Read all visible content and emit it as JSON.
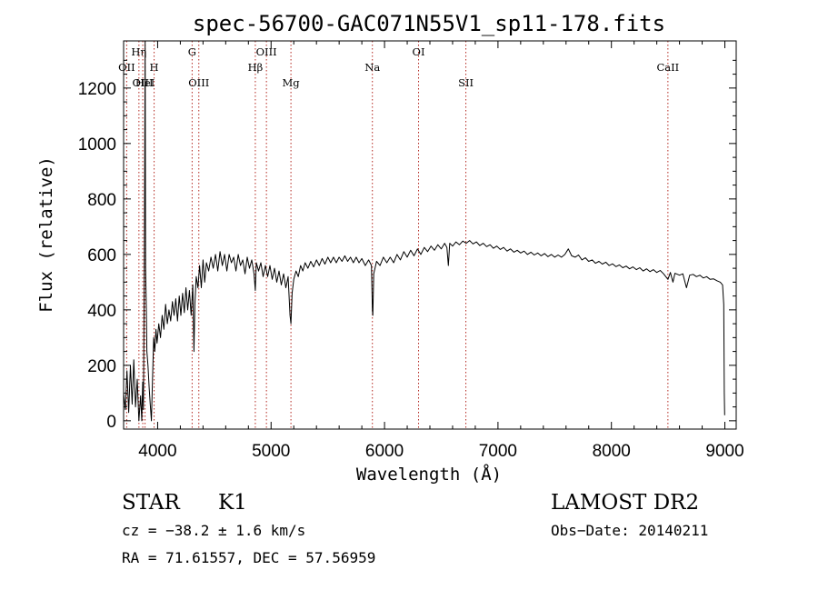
{
  "chart_data": {
    "type": "line",
    "title": "spec-56700-GAC071N55V1_sp11-178.fits",
    "xlabel": "Wavelength (Å)",
    "ylabel": "Flux (relative)",
    "xlim": [
      3700,
      9100
    ],
    "ylim": [
      -30,
      1370
    ],
    "x_ticks": [
      4000,
      5000,
      6000,
      7000,
      8000,
      9000
    ],
    "y_ticks": [
      0,
      200,
      400,
      600,
      800,
      1000,
      1200
    ],
    "grid": false,
    "series": [
      {
        "points": [
          [
            3700,
            100
          ],
          [
            3715,
            40
          ],
          [
            3730,
            180
          ],
          [
            3745,
            30
          ],
          [
            3760,
            200
          ],
          [
            3775,
            60
          ],
          [
            3790,
            220
          ],
          [
            3805,
            50
          ],
          [
            3820,
            150
          ],
          [
            3835,
            0
          ],
          [
            3850,
            90
          ],
          [
            3860,
            0
          ],
          [
            3868,
            140
          ],
          [
            3875,
            40
          ],
          [
            3882,
            500
          ],
          [
            3886,
            900
          ],
          [
            3890,
            1370
          ],
          [
            3894,
            550
          ],
          [
            3900,
            400
          ],
          [
            3905,
            250
          ],
          [
            3915,
            200
          ],
          [
            3925,
            120
          ],
          [
            3935,
            60
          ],
          [
            3945,
            0
          ],
          [
            3955,
            150
          ],
          [
            3965,
            300
          ],
          [
            3975,
            250
          ],
          [
            3985,
            330
          ],
          [
            3995,
            280
          ],
          [
            4010,
            350
          ],
          [
            4025,
            300
          ],
          [
            4040,
            380
          ],
          [
            4055,
            330
          ],
          [
            4070,
            420
          ],
          [
            4085,
            350
          ],
          [
            4100,
            400
          ],
          [
            4115,
            360
          ],
          [
            4130,
            430
          ],
          [
            4145,
            380
          ],
          [
            4160,
            440
          ],
          [
            4175,
            360
          ],
          [
            4190,
            450
          ],
          [
            4205,
            380
          ],
          [
            4220,
            460
          ],
          [
            4235,
            390
          ],
          [
            4250,
            480
          ],
          [
            4265,
            400
          ],
          [
            4280,
            470
          ],
          [
            4295,
            380
          ],
          [
            4310,
            490
          ],
          [
            4320,
            250
          ],
          [
            4328,
            420
          ],
          [
            4340,
            520
          ],
          [
            4355,
            480
          ],
          [
            4370,
            560
          ],
          [
            4385,
            480
          ],
          [
            4400,
            580
          ],
          [
            4415,
            500
          ],
          [
            4430,
            570
          ],
          [
            4450,
            540
          ],
          [
            4470,
            590
          ],
          [
            4490,
            550
          ],
          [
            4510,
            600
          ],
          [
            4530,
            540
          ],
          [
            4550,
            610
          ],
          [
            4570,
            560
          ],
          [
            4590,
            600
          ],
          [
            4610,
            540
          ],
          [
            4630,
            600
          ],
          [
            4650,
            570
          ],
          [
            4670,
            590
          ],
          [
            4690,
            540
          ],
          [
            4710,
            600
          ],
          [
            4730,
            560
          ],
          [
            4750,
            580
          ],
          [
            4770,
            530
          ],
          [
            4790,
            590
          ],
          [
            4810,
            550
          ],
          [
            4830,
            580
          ],
          [
            4850,
            530
          ],
          [
            4861,
            470
          ],
          [
            4870,
            570
          ],
          [
            4890,
            540
          ],
          [
            4910,
            570
          ],
          [
            4930,
            520
          ],
          [
            4950,
            560
          ],
          [
            4970,
            520
          ],
          [
            4990,
            560
          ],
          [
            5010,
            510
          ],
          [
            5030,
            550
          ],
          [
            5050,
            500
          ],
          [
            5070,
            540
          ],
          [
            5090,
            490
          ],
          [
            5110,
            530
          ],
          [
            5130,
            480
          ],
          [
            5150,
            520
          ],
          [
            5167,
            380
          ],
          [
            5175,
            350
          ],
          [
            5185,
            460
          ],
          [
            5200,
            510
          ],
          [
            5220,
            540
          ],
          [
            5240,
            520
          ],
          [
            5260,
            560
          ],
          [
            5280,
            540
          ],
          [
            5300,
            570
          ],
          [
            5325,
            550
          ],
          [
            5350,
            575
          ],
          [
            5375,
            555
          ],
          [
            5400,
            580
          ],
          [
            5425,
            560
          ],
          [
            5450,
            585
          ],
          [
            5475,
            565
          ],
          [
            5500,
            590
          ],
          [
            5525,
            570
          ],
          [
            5550,
            590
          ],
          [
            5575,
            570
          ],
          [
            5600,
            590
          ],
          [
            5625,
            575
          ],
          [
            5650,
            595
          ],
          [
            5675,
            575
          ],
          [
            5700,
            590
          ],
          [
            5725,
            570
          ],
          [
            5750,
            590
          ],
          [
            5775,
            570
          ],
          [
            5800,
            585
          ],
          [
            5830,
            560
          ],
          [
            5860,
            580
          ],
          [
            5885,
            560
          ],
          [
            5893,
            400
          ],
          [
            5897,
            380
          ],
          [
            5905,
            530
          ],
          [
            5930,
            575
          ],
          [
            5960,
            560
          ],
          [
            5990,
            590
          ],
          [
            6020,
            570
          ],
          [
            6050,
            590
          ],
          [
            6080,
            570
          ],
          [
            6110,
            600
          ],
          [
            6140,
            580
          ],
          [
            6170,
            610
          ],
          [
            6200,
            590
          ],
          [
            6230,
            615
          ],
          [
            6260,
            595
          ],
          [
            6290,
            620
          ],
          [
            6320,
            600
          ],
          [
            6350,
            625
          ],
          [
            6380,
            610
          ],
          [
            6410,
            630
          ],
          [
            6440,
            615
          ],
          [
            6470,
            635
          ],
          [
            6500,
            620
          ],
          [
            6530,
            640
          ],
          [
            6550,
            625
          ],
          [
            6563,
            560
          ],
          [
            6575,
            640
          ],
          [
            6600,
            630
          ],
          [
            6630,
            645
          ],
          [
            6660,
            635
          ],
          [
            6690,
            648
          ],
          [
            6720,
            640
          ],
          [
            6750,
            650
          ],
          [
            6780,
            638
          ],
          [
            6810,
            645
          ],
          [
            6840,
            632
          ],
          [
            6870,
            640
          ],
          [
            6900,
            628
          ],
          [
            6930,
            635
          ],
          [
            6960,
            622
          ],
          [
            6990,
            630
          ],
          [
            7020,
            618
          ],
          [
            7050,
            625
          ],
          [
            7080,
            612
          ],
          [
            7110,
            620
          ],
          [
            7140,
            608
          ],
          [
            7170,
            615
          ],
          [
            7200,
            605
          ],
          [
            7230,
            612
          ],
          [
            7260,
            600
          ],
          [
            7290,
            608
          ],
          [
            7320,
            598
          ],
          [
            7350,
            605
          ],
          [
            7380,
            595
          ],
          [
            7410,
            603
          ],
          [
            7440,
            592
          ],
          [
            7470,
            600
          ],
          [
            7500,
            590
          ],
          [
            7530,
            598
          ],
          [
            7560,
            590
          ],
          [
            7590,
            600
          ],
          [
            7620,
            620
          ],
          [
            7650,
            595
          ],
          [
            7680,
            590
          ],
          [
            7710,
            598
          ],
          [
            7740,
            580
          ],
          [
            7770,
            588
          ],
          [
            7800,
            575
          ],
          [
            7830,
            580
          ],
          [
            7860,
            568
          ],
          [
            7890,
            575
          ],
          [
            7920,
            565
          ],
          [
            7950,
            572
          ],
          [
            7980,
            560
          ],
          [
            8010,
            566
          ],
          [
            8040,
            556
          ],
          [
            8070,
            562
          ],
          [
            8100,
            552
          ],
          [
            8130,
            558
          ],
          [
            8160,
            548
          ],
          [
            8190,
            555
          ],
          [
            8220,
            545
          ],
          [
            8250,
            552
          ],
          [
            8280,
            540
          ],
          [
            8310,
            548
          ],
          [
            8340,
            538
          ],
          [
            8370,
            545
          ],
          [
            8400,
            535
          ],
          [
            8430,
            542
          ],
          [
            8460,
            530
          ],
          [
            8498,
            510
          ],
          [
            8520,
            535
          ],
          [
            8542,
            500
          ],
          [
            8560,
            532
          ],
          [
            8600,
            525
          ],
          [
            8630,
            530
          ],
          [
            8662,
            480
          ],
          [
            8690,
            525
          ],
          [
            8720,
            528
          ],
          [
            8750,
            520
          ],
          [
            8780,
            525
          ],
          [
            8810,
            515
          ],
          [
            8840,
            520
          ],
          [
            8870,
            510
          ],
          [
            8900,
            512
          ],
          [
            8930,
            505
          ],
          [
            8960,
            500
          ],
          [
            8980,
            490
          ],
          [
            8990,
            420
          ],
          [
            8995,
            100
          ],
          [
            8998,
            20
          ]
        ]
      }
    ],
    "annotations": [
      {
        "label": "OII",
        "x": 3727,
        "row": 2
      },
      {
        "label": "Hη",
        "x": 3835,
        "row": 1
      },
      {
        "label": "OIII",
        "x": 3869,
        "row": 3
      },
      {
        "label": "H",
        "x": 3969,
        "row": 2
      },
      {
        "label": "HeI",
        "x": 3889,
        "row": 3
      },
      {
        "label": "G",
        "x": 4304,
        "row": 1
      },
      {
        "label": "OIII",
        "x": 4363,
        "row": 3
      },
      {
        "label": "Hβ",
        "x": 4861,
        "row": 2
      },
      {
        "label": "OIII",
        "x": 4959,
        "row": 1
      },
      {
        "label": "Mg",
        "x": 5175,
        "row": 3
      },
      {
        "label": "Na",
        "x": 5893,
        "row": 2
      },
      {
        "label": "OI",
        "x": 6300,
        "row": 1
      },
      {
        "label": "SII",
        "x": 6717,
        "row": 3
      },
      {
        "label": "CaII",
        "x": 8498,
        "row": 2
      }
    ]
  },
  "info": {
    "object_type": "STAR",
    "subclass": "K1",
    "survey": "LAMOST DR2",
    "redshift": "cz = −38.2 ± 1.6 km/s",
    "obs_date": "Obs−Date: 20140211",
    "coords": "RA =  71.61557, DEC =  57.56959"
  }
}
